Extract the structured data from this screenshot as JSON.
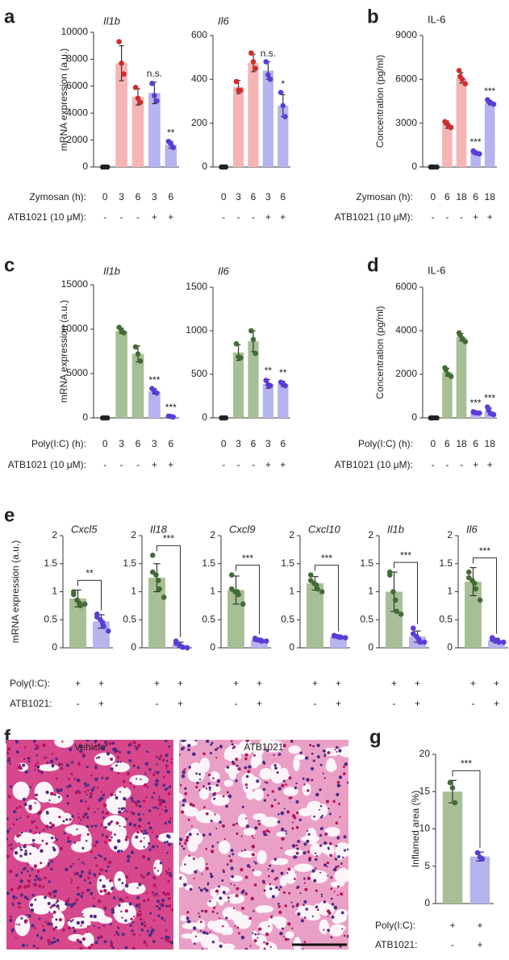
{
  "chart_data": [
    {
      "type": "bar",
      "panel": "a",
      "title": "Il1b",
      "italic": true,
      "ylabel": "mRNA expression (a.u.)",
      "ylim": [
        0,
        10000
      ],
      "yticks": [
        0,
        2000,
        4000,
        6000,
        8000,
        10000
      ],
      "values": [
        0,
        7700,
        5200,
        5500,
        1650
      ],
      "errors": [
        0,
        1300,
        600,
        800,
        250
      ],
      "points": [
        [
          0,
          0,
          0
        ],
        [
          9300,
          7700,
          6900
        ],
        [
          5900,
          5100,
          4800
        ],
        [
          6200,
          5300,
          4900
        ],
        [
          1900,
          1700,
          1450
        ]
      ],
      "bar_colors": [
        "#222222",
        "#f5b5b5",
        "#f5b5b5",
        "#b6b4ee",
        "#b6b4ee"
      ],
      "dot_colors": [
        "#222222",
        "#d02c2c",
        "#d02c2c",
        "#5a3dd6",
        "#5a3dd6"
      ],
      "annotations": [
        null,
        null,
        null,
        "n.s.",
        "**"
      ],
      "conditions": [
        {
          "label": "Zymosan (h):",
          "values": [
            "0",
            "3",
            "6",
            "3",
            "6"
          ]
        },
        {
          "label": "ATB1021 (10 μM):",
          "values": [
            "-",
            "-",
            "-",
            "+",
            "+"
          ]
        }
      ]
    },
    {
      "type": "bar",
      "title": "Il6",
      "italic": true,
      "ylim": [
        0,
        600
      ],
      "yticks": [
        0,
        200,
        400,
        600
      ],
      "values": [
        0,
        365,
        475,
        440,
        280
      ],
      "errors": [
        0,
        30,
        40,
        40,
        50
      ],
      "points": [
        [
          0,
          0,
          0
        ],
        [
          390,
          350,
          350
        ],
        [
          520,
          480,
          450
        ],
        [
          480,
          420,
          400
        ],
        [
          340,
          280,
          230
        ]
      ],
      "bar_colors": [
        "#222222",
        "#f5b5b5",
        "#f5b5b5",
        "#b6b4ee",
        "#b6b4ee"
      ],
      "dot_colors": [
        "#222222",
        "#d02c2c",
        "#d02c2c",
        "#5a3dd6",
        "#5a3dd6"
      ],
      "annotations": [
        null,
        null,
        null,
        "n.s.",
        "*"
      ],
      "conditions": [
        {
          "values": [
            "0",
            "3",
            "6",
            "3",
            "6"
          ]
        },
        {
          "values": [
            "-",
            "-",
            "-",
            "+",
            "+"
          ]
        }
      ]
    },
    {
      "type": "bar",
      "panel": "b",
      "title": "IL-6",
      "italic": false,
      "ylabel": "Concentration (pg/ml)",
      "ylim": [
        0,
        9000
      ],
      "yticks": [
        0,
        3000,
        6000,
        9000
      ],
      "values": [
        0,
        2900,
        6100,
        1000,
        4400
      ],
      "errors": [
        0,
        250,
        350,
        100,
        150
      ],
      "points": [
        [
          0,
          0,
          0,
          0
        ],
        [
          3100,
          3000,
          2900,
          2700
        ],
        [
          6600,
          6200,
          6000,
          5700
        ],
        [
          1100,
          1000,
          950,
          900
        ],
        [
          4600,
          4500,
          4400,
          4300
        ]
      ],
      "bar_colors": [
        "#222222",
        "#f5b5b5",
        "#f5b5b5",
        "#b6b4ee",
        "#b6b4ee"
      ],
      "dot_colors": [
        "#222222",
        "#d02c2c",
        "#d02c2c",
        "#5a3dd6",
        "#5a3dd6"
      ],
      "annotations": [
        null,
        null,
        null,
        "***",
        "***"
      ],
      "conditions": [
        {
          "label": "Zymosan (h):",
          "values": [
            "0",
            "6",
            "18",
            "6",
            "18"
          ]
        },
        {
          "label": "ATB1021 (10 μM):",
          "values": [
            "-",
            "-",
            "-",
            "+",
            "+"
          ]
        }
      ]
    },
    {
      "type": "bar",
      "panel": "c",
      "title": "Il1b",
      "italic": true,
      "ylabel": "mRNA expression (a.u.)",
      "ylim": [
        0,
        15000
      ],
      "yticks": [
        0,
        5000,
        10000,
        15000
      ],
      "values": [
        0,
        9800,
        7200,
        3000,
        150
      ],
      "errors": [
        0,
        300,
        900,
        300,
        60
      ],
      "points": [
        [
          0,
          0,
          0
        ],
        [
          10200,
          9800,
          9600
        ],
        [
          8000,
          7200,
          6400
        ],
        [
          3300,
          3000,
          2800
        ],
        [
          200,
          150,
          100
        ]
      ],
      "bar_colors": [
        "#222222",
        "#a7bf95",
        "#a7bf95",
        "#b6b4ee",
        "#b6b4ee"
      ],
      "dot_colors": [
        "#222222",
        "#436b35",
        "#436b35",
        "#5a3dd6",
        "#5a3dd6"
      ],
      "annotations": [
        null,
        null,
        null,
        "***",
        "***"
      ],
      "conditions": [
        {
          "label": "Poly(I:C) (h):",
          "values": [
            "0",
            "3",
            "6",
            "3",
            "6"
          ]
        },
        {
          "label": "ATB1021 (10 μM):",
          "values": [
            "-",
            "-",
            "-",
            "+",
            "+"
          ]
        }
      ]
    },
    {
      "type": "bar",
      "title": "Il6",
      "italic": true,
      "ylim": [
        0,
        1500
      ],
      "yticks": [
        0,
        500,
        1000,
        1500
      ],
      "values": [
        0,
        750,
        880,
        390,
        390
      ],
      "errors": [
        0,
        90,
        120,
        50,
        30
      ],
      "points": [
        [
          0,
          0,
          0
        ],
        [
          850,
          700,
          690
        ],
        [
          1000,
          900,
          740
        ],
        [
          430,
          380,
          370
        ],
        [
          410,
          390,
          370
        ]
      ],
      "bar_colors": [
        "#222222",
        "#a7bf95",
        "#a7bf95",
        "#b6b4ee",
        "#b6b4ee"
      ],
      "dot_colors": [
        "#222222",
        "#436b35",
        "#436b35",
        "#5a3dd6",
        "#5a3dd6"
      ],
      "annotations": [
        null,
        null,
        null,
        "**",
        "**"
      ],
      "conditions": [
        {
          "values": [
            "0",
            "3",
            "6",
            "3",
            "6"
          ]
        },
        {
          "values": [
            "-",
            "-",
            "-",
            "+",
            "+"
          ]
        }
      ]
    },
    {
      "type": "bar",
      "panel": "d",
      "title": "IL-6",
      "italic": false,
      "ylabel": "Concentration (pg/ml)",
      "ylim": [
        0,
        6000
      ],
      "yticks": [
        0,
        2000,
        4000,
        6000
      ],
      "values": [
        0,
        2100,
        3700,
        250,
        300
      ],
      "errors": [
        0,
        180,
        170,
        30,
        150
      ],
      "points": [
        [
          0,
          0,
          0,
          0
        ],
        [
          2300,
          2200,
          2000,
          1900
        ],
        [
          3900,
          3800,
          3650,
          3500
        ],
        [
          280,
          250,
          230,
          220
        ],
        [
          500,
          350,
          200,
          150
        ]
      ],
      "bar_colors": [
        "#222222",
        "#a7bf95",
        "#a7bf95",
        "#b6b4ee",
        "#b6b4ee"
      ],
      "dot_colors": [
        "#222222",
        "#436b35",
        "#436b35",
        "#5a3dd6",
        "#5a3dd6"
      ],
      "annotations": [
        null,
        null,
        null,
        "***",
        "***"
      ],
      "conditions": [
        {
          "label": "Poly(I:C) (h):",
          "values": [
            "0",
            "6",
            "18",
            "6",
            "18"
          ]
        },
        {
          "label": "ATB1021 (10 μM):",
          "values": [
            "-",
            "-",
            "-",
            "+",
            "+"
          ]
        }
      ]
    },
    {
      "type": "bar",
      "panel": "e",
      "title": "Cxcl5",
      "italic": true,
      "ylabel": "mRNA expression (a.u.)",
      "ylim": [
        0,
        2
      ],
      "yticks": [
        0,
        0.5,
        1,
        1.5,
        2
      ],
      "values": [
        0.88,
        0.47
      ],
      "errors": [
        0.15,
        0.12
      ],
      "points": [
        [
          1.0,
          0.95,
          0.85,
          0.8,
          0.75,
          0.78
        ],
        [
          0.6,
          0.55,
          0.5,
          0.45,
          0.38,
          0.3
        ]
      ],
      "bar_colors": [
        "#a7bf95",
        "#b6b4ee"
      ],
      "dot_colors": [
        "#436b35",
        "#5a3dd6"
      ],
      "bracket_label": "**",
      "conditions": [
        {
          "label": "Poly(I:C):",
          "values": [
            "+",
            "+"
          ]
        },
        {
          "label": "ATB1021:",
          "values": [
            "-",
            "+"
          ]
        }
      ]
    },
    {
      "type": "bar",
      "title": "Il18",
      "italic": true,
      "ylim": [
        0,
        2
      ],
      "yticks": [
        0,
        0.5,
        1,
        1.5,
        2
      ],
      "values": [
        1.25,
        0.05
      ],
      "errors": [
        0.25,
        0.05
      ],
      "points": [
        [
          1.65,
          1.35,
          1.3,
          1.2,
          1.05,
          0.9
        ],
        [
          0.12,
          0.08,
          0.05,
          0.02,
          0.01,
          0
        ]
      ],
      "bar_colors": [
        "#a7bf95",
        "#b6b4ee"
      ],
      "dot_colors": [
        "#436b35",
        "#5a3dd6"
      ],
      "bracket_label": "***",
      "conditions": [
        {
          "values": [
            "+",
            "+"
          ]
        },
        {
          "values": [
            "-",
            "+"
          ]
        }
      ]
    },
    {
      "type": "bar",
      "title": "Cxcl9",
      "italic": true,
      "ylim": [
        0,
        2
      ],
      "yticks": [
        0,
        0.5,
        1,
        1.5,
        2
      ],
      "values": [
        1.03,
        0.14
      ],
      "errors": [
        0.25,
        0.03
      ],
      "points": [
        [
          1.3,
          1.05,
          1.0,
          1.0,
          0.95,
          0.78
        ],
        [
          0.17,
          0.15,
          0.14,
          0.13,
          0.12,
          0.12
        ]
      ],
      "bar_colors": [
        "#a7bf95",
        "#b6b4ee"
      ],
      "dot_colors": [
        "#436b35",
        "#5a3dd6"
      ],
      "bracket_label": "***",
      "conditions": [
        {
          "values": [
            "+",
            "+"
          ]
        },
        {
          "values": [
            "-",
            "+"
          ]
        }
      ]
    },
    {
      "type": "bar",
      "title": "Cxcl10",
      "italic": true,
      "ylim": [
        0,
        2
      ],
      "yticks": [
        0,
        0.5,
        1,
        1.5,
        2
      ],
      "values": [
        1.15,
        0.2
      ],
      "errors": [
        0.12,
        0.02
      ],
      "points": [
        [
          1.3,
          1.2,
          1.15,
          1.12,
          1.05,
          1.0
        ],
        [
          0.22,
          0.21,
          0.2,
          0.19,
          0.19,
          0.18
        ]
      ],
      "bar_colors": [
        "#a7bf95",
        "#b6b4ee"
      ],
      "dot_colors": [
        "#436b35",
        "#5a3dd6"
      ],
      "bracket_label": "***",
      "conditions": [
        {
          "values": [
            "+",
            "+"
          ]
        },
        {
          "values": [
            "-",
            "+"
          ]
        }
      ]
    },
    {
      "type": "bar",
      "title": "Il1b",
      "italic": true,
      "ylim": [
        0,
        2
      ],
      "yticks": [
        0,
        0.5,
        1,
        1.5,
        2
      ],
      "values": [
        1.0,
        0.2
      ],
      "errors": [
        0.35,
        0.1
      ],
      "points": [
        [
          1.35,
          1.3,
          1.0,
          0.85,
          0.65,
          0.6
        ],
        [
          0.35,
          0.25,
          0.2,
          0.15,
          0.1,
          0.1
        ]
      ],
      "bar_colors": [
        "#a7bf95",
        "#b6b4ee"
      ],
      "dot_colors": [
        "#436b35",
        "#5a3dd6"
      ],
      "bracket_label": "***",
      "conditions": [
        {
          "values": [
            "+",
            "+"
          ]
        },
        {
          "values": [
            "-",
            "+"
          ]
        }
      ]
    },
    {
      "type": "bar",
      "title": "Il6",
      "italic": true,
      "ylim": [
        0,
        2
      ],
      "yticks": [
        0,
        0.5,
        1,
        1.5,
        2
      ],
      "values": [
        1.18,
        0.13
      ],
      "errors": [
        0.25,
        0.04
      ],
      "points": [
        [
          1.35,
          1.25,
          1.2,
          1.15,
          1.05,
          0.85
        ],
        [
          0.18,
          0.15,
          0.12,
          0.12,
          0.1,
          0.1
        ]
      ],
      "bar_colors": [
        "#a7bf95",
        "#b6b4ee"
      ],
      "dot_colors": [
        "#436b35",
        "#5a3dd6"
      ],
      "bracket_label": "***",
      "conditions": [
        {
          "values": [
            "+",
            "+"
          ]
        },
        {
          "values": [
            "-",
            "+"
          ]
        }
      ]
    },
    {
      "type": "histology",
      "panel": "f",
      "labels": [
        "Vehicle",
        "ATB1021"
      ]
    },
    {
      "type": "bar",
      "panel": "g",
      "ylabel": "Inflamed area (%)",
      "ylim": [
        0,
        20
      ],
      "yticks": [
        0,
        5,
        10,
        15,
        20
      ],
      "values": [
        15,
        6.3
      ],
      "errors": [
        1.5,
        0.6
      ],
      "points": [
        [
          16.2,
          15.5,
          13.5
        ],
        [
          6.8,
          6.2,
          6.0
        ]
      ],
      "bar_colors": [
        "#a7bf95",
        "#b6b4ee"
      ],
      "dot_colors": [
        "#436b35",
        "#5a3dd6"
      ],
      "bracket_label": "***",
      "conditions": [
        {
          "label": "Poly(I:C):",
          "values": [
            "+",
            "+"
          ]
        },
        {
          "label": "ATB1021:",
          "values": [
            "-",
            "+"
          ]
        }
      ]
    }
  ]
}
